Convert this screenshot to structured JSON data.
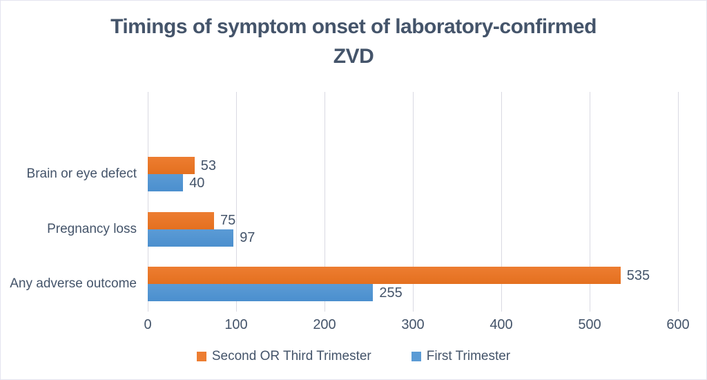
{
  "chart_data": {
    "type": "bar",
    "orientation": "horizontal",
    "title": "Timings of symptom onset of laboratory-confirmed ZVD",
    "title_lines": [
      "Timings of symptom onset of laboratory-confirmed",
      "ZVD"
    ],
    "categories": [
      "Brain or eye defect",
      "Pregnancy loss",
      "Any adverse outcome"
    ],
    "series": [
      {
        "name": "Second OR Third Trimester",
        "color": "#ED7D31",
        "color_dark": "#e4701f",
        "values": [
          53,
          75,
          535
        ]
      },
      {
        "name": "First Trimester",
        "color": "#5B9BD5",
        "color_dark": "#4b8fce",
        "values": [
          40,
          97,
          255
        ]
      }
    ],
    "x_axis": {
      "min": 0,
      "max": 600,
      "tick_interval": 100,
      "ticks": [
        0,
        100,
        200,
        300,
        400,
        500,
        600
      ]
    },
    "data_labels": [
      {
        "category": "Brain or eye defect",
        "Second OR Third Trimester": "53",
        "First Trimester": "40"
      },
      {
        "category": "Pregnancy loss",
        "Second OR Third Trimester": "75",
        "First Trimester": "97"
      },
      {
        "category": "Any adverse outcome",
        "Second OR Third Trimester": "535",
        "First Trimester": "255"
      }
    ],
    "grid": true,
    "legend_position": "bottom",
    "empty_top_band": true
  },
  "colors": {
    "title_text": "#44546A",
    "axis_text": "#44546A",
    "gridline": "#d9d9e2",
    "chart_border": "#e3e3ef",
    "background": "#FFFFFF"
  }
}
